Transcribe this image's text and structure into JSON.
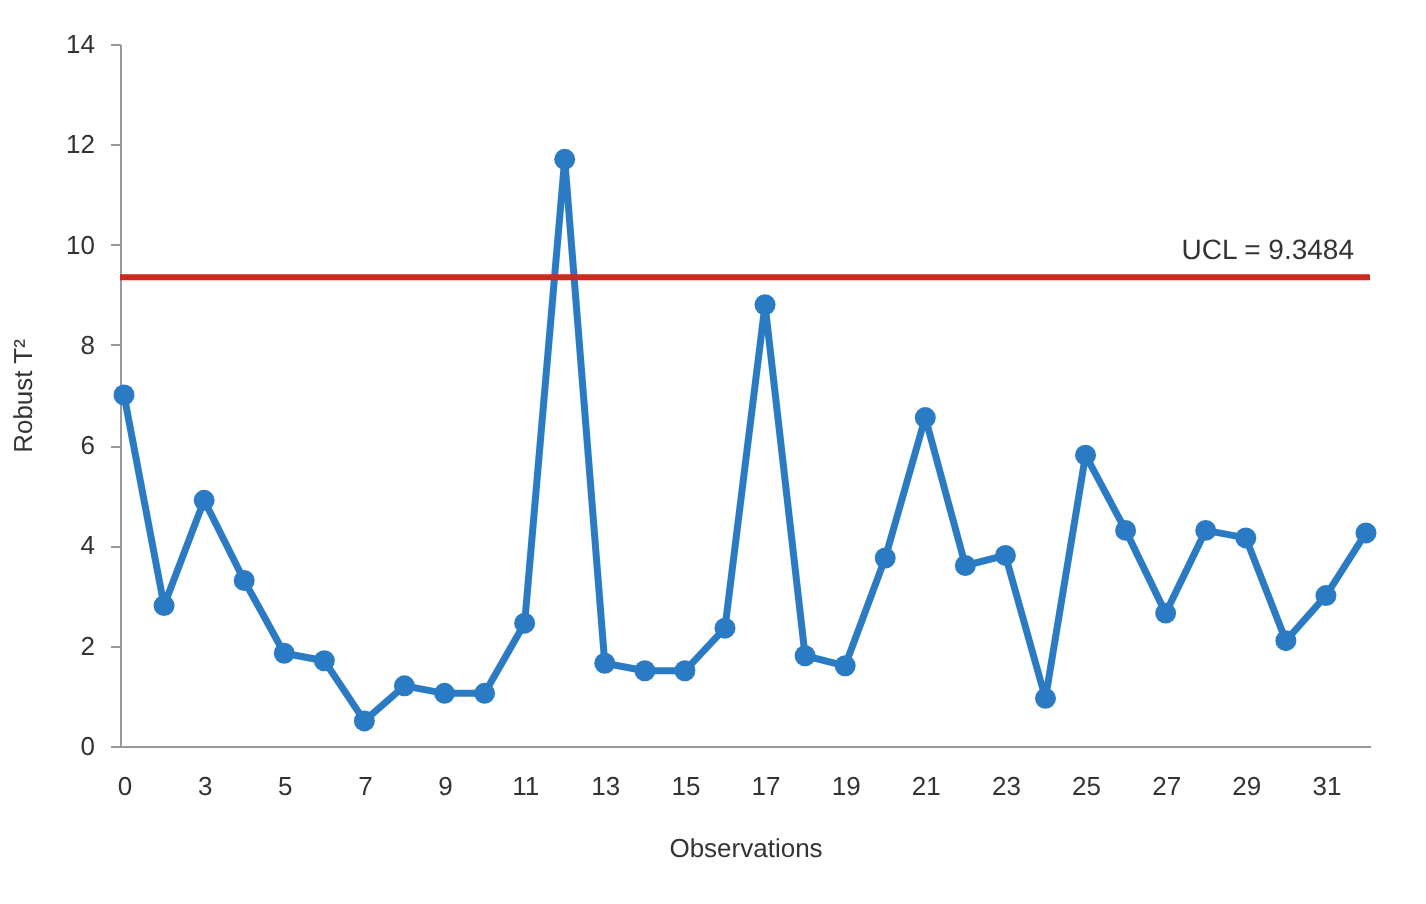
{
  "chart_data": {
    "type": "line",
    "xlabel": "Observations",
    "ylabel": "Robust T²",
    "categories": [
      "0",
      null,
      "3",
      null,
      "5",
      null,
      "7",
      null,
      "9",
      null,
      "11",
      null,
      "13",
      null,
      "15",
      null,
      "17",
      null,
      "19",
      null,
      "21",
      null,
      "23",
      null,
      "25",
      null,
      "27",
      null,
      "29",
      null,
      "31",
      null
    ],
    "series": [
      {
        "color": "#2a7bc4",
        "values": [
          7.0,
          2.8,
          4.9,
          3.3,
          1.85,
          1.7,
          0.5,
          1.2,
          1.05,
          1.05,
          2.45,
          11.7,
          1.65,
          1.5,
          1.5,
          2.35,
          8.8,
          1.8,
          1.6,
          3.75,
          6.55,
          3.6,
          3.8,
          0.95,
          5.8,
          4.3,
          2.65,
          4.3,
          4.15,
          2.1,
          3.0,
          4.25
        ]
      }
    ],
    "ylim": [
      0,
      14
    ],
    "yticks": [
      0,
      2,
      4,
      6,
      8,
      10,
      12,
      14
    ],
    "grid": false,
    "marker": "circle",
    "line_style": "solid",
    "ref_lines": [
      {
        "axis": "y",
        "value": 9.3484,
        "label": "UCL = 9.3484",
        "color": "#cc2a1e"
      }
    ]
  }
}
